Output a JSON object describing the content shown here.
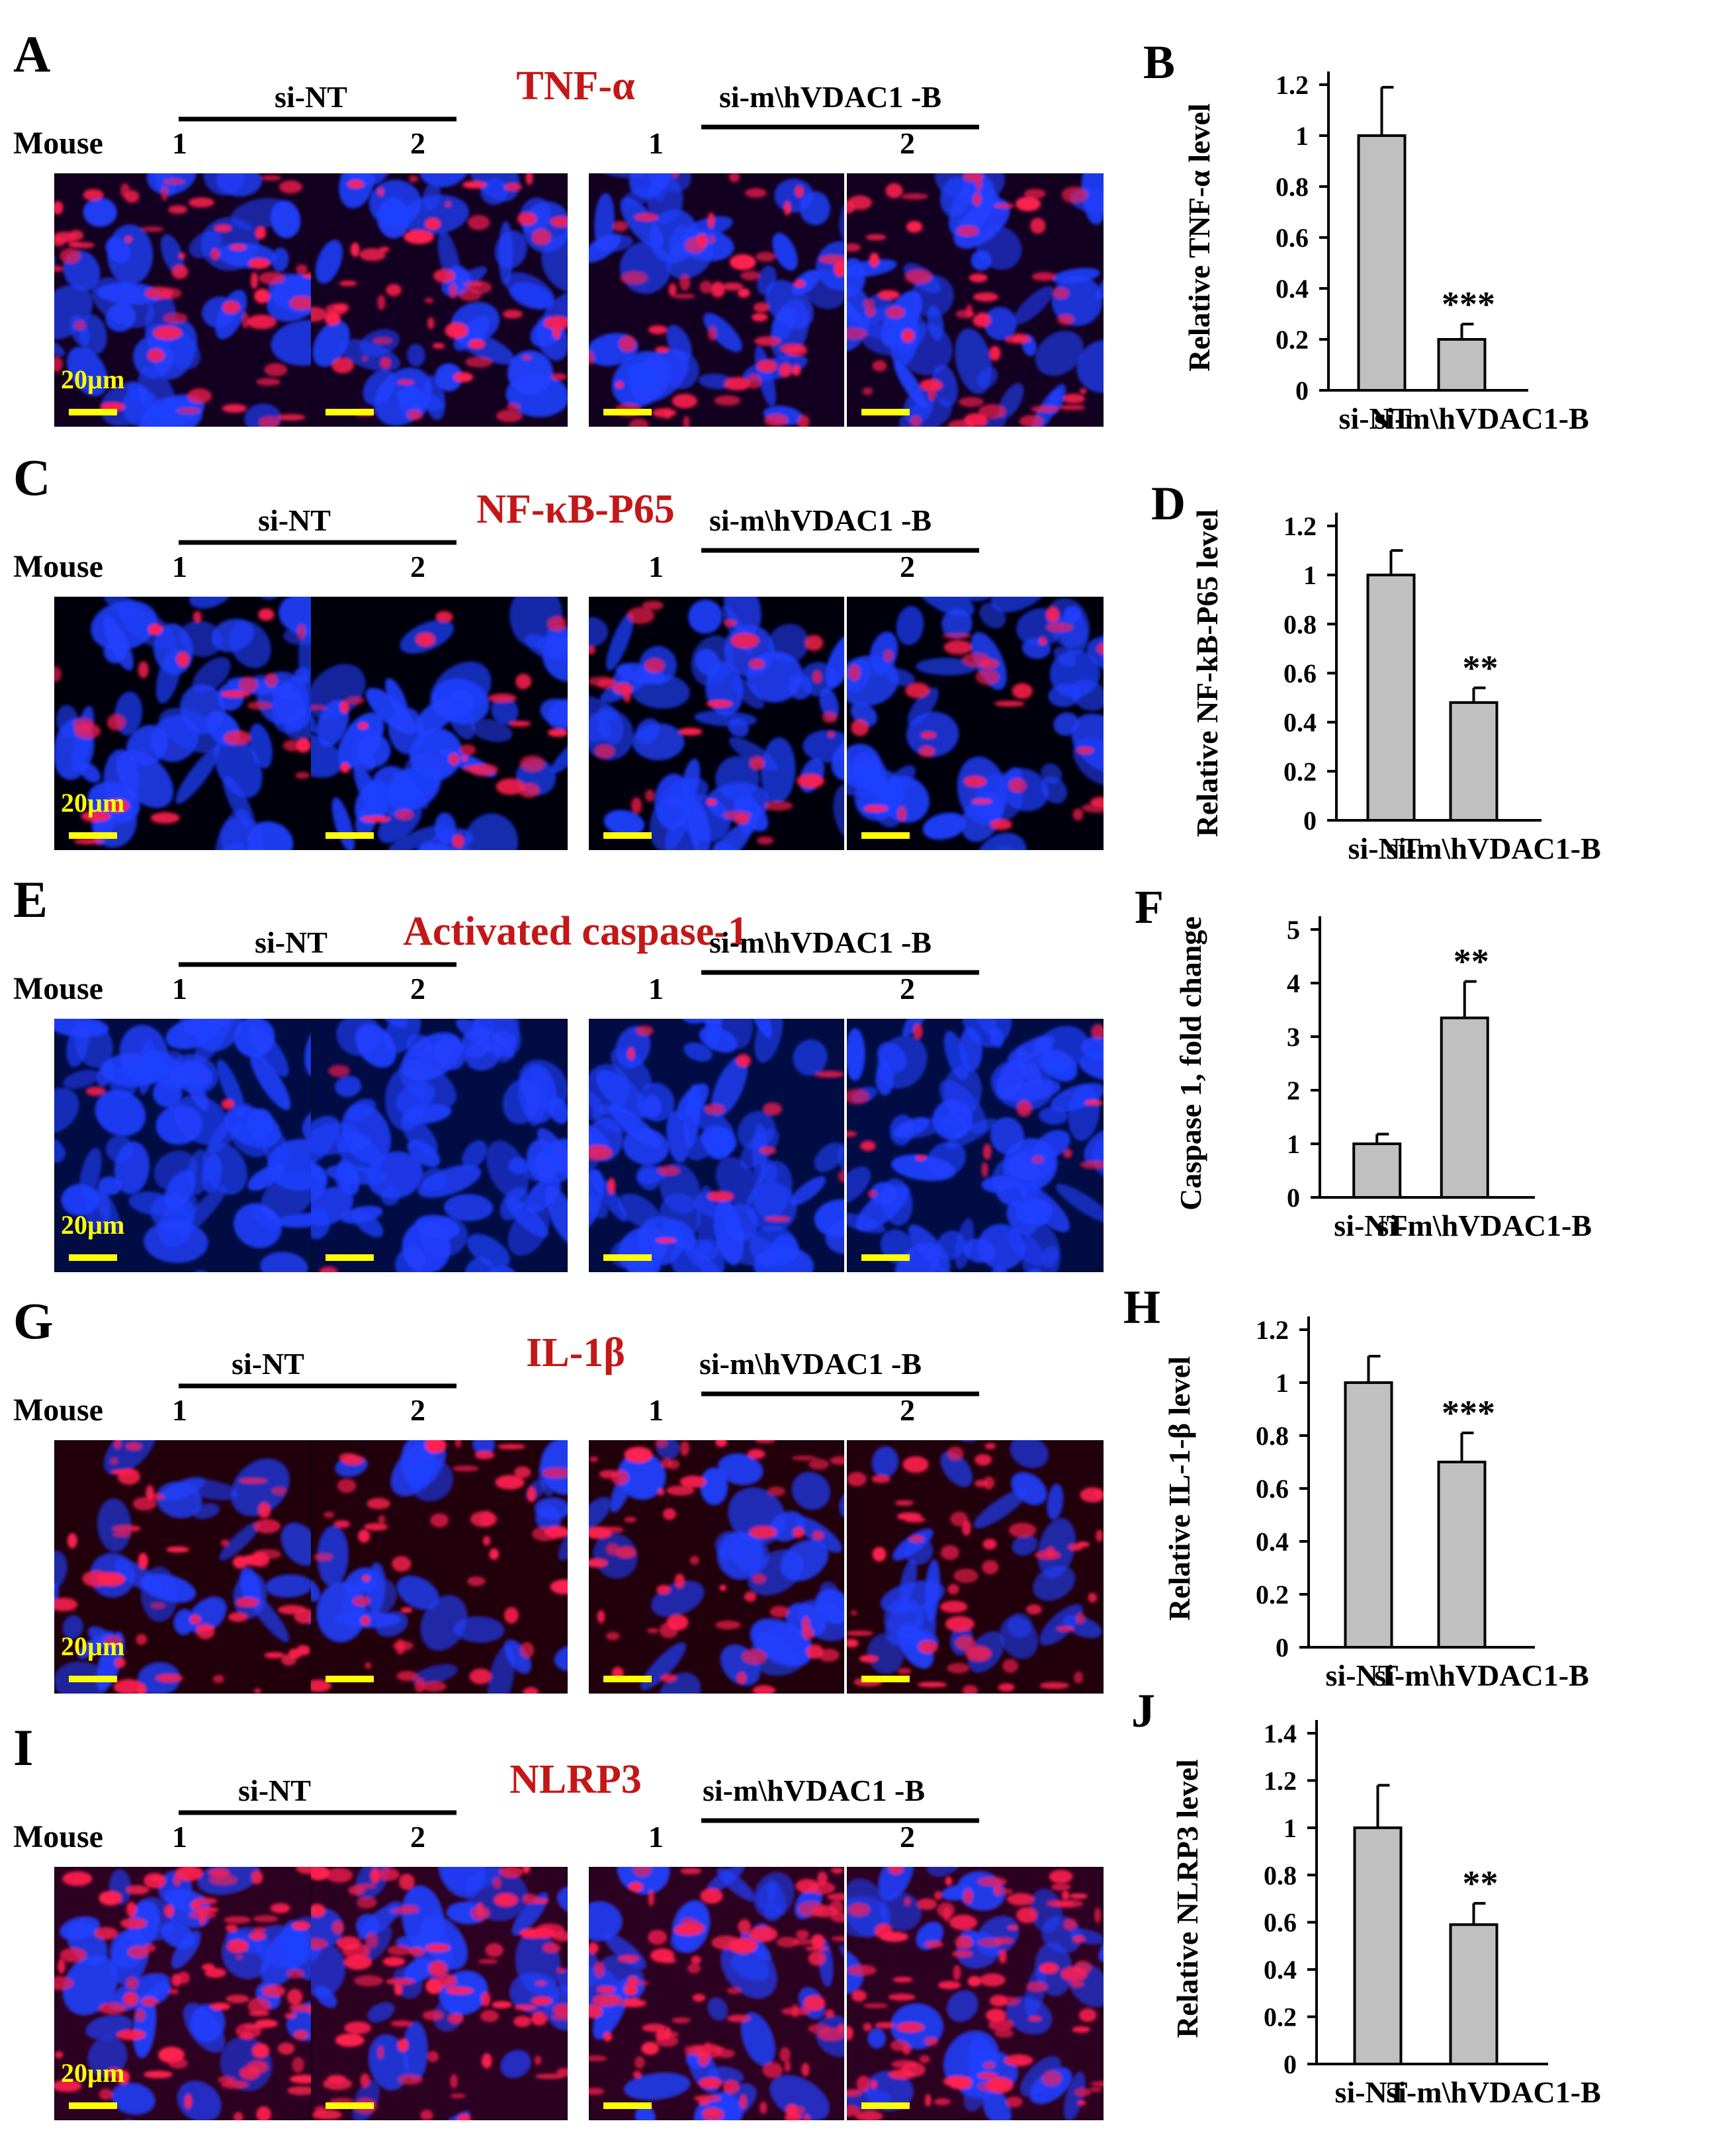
{
  "colors": {
    "red_title": "#c41717",
    "micro_blue": "#2040ff",
    "micro_red": "#ff2050",
    "scale_bar": "#ffff00",
    "bar_fill": "#c0c0c0"
  },
  "common": {
    "mouse_label": "Mouse",
    "group_si_nt": "si-NT",
    "group_si_vdac": "si-m\\hVDAC1 -B",
    "mouse_1": "1",
    "mouse_2": "2",
    "scale_label": "20µm"
  },
  "panels": [
    {
      "letter": "A",
      "title": "TNF-α",
      "images": [
        "si-NT mouse 1",
        "si-NT mouse 2",
        "si-m\\hVDAC1 -B mouse 1",
        "si-m\\hVDAC1 -B mouse 2"
      ]
    },
    {
      "letter": "C",
      "title": "NF-κB-P65"
    },
    {
      "letter": "E",
      "title": "Activated caspase-1"
    },
    {
      "letter": "G",
      "title": "IL-1β"
    },
    {
      "letter": "I",
      "title": "NLRP3"
    }
  ],
  "chart_data": [
    {
      "letter": "B",
      "type": "bar",
      "categories": [
        "si-NT",
        "si-m\\hVDAC1-B"
      ],
      "values": [
        1.0,
        0.2
      ],
      "errors": [
        0.19,
        0.06
      ],
      "significance": [
        "",
        "***"
      ],
      "ylabel": "Relative TNF-α level",
      "ylim": [
        0,
        1.2
      ],
      "yticks": [
        "0",
        "0.2",
        "0.4",
        "0.6",
        "0.8",
        "1",
        "1.2"
      ]
    },
    {
      "letter": "D",
      "type": "bar",
      "categories": [
        "si-NT",
        "si-m\\hVDAC1-B"
      ],
      "values": [
        1.0,
        0.48
      ],
      "errors": [
        0.1,
        0.06
      ],
      "significance": [
        "",
        "**"
      ],
      "ylabel": "Relative NF-kB-P65 level",
      "ylim": [
        0,
        1.2
      ],
      "yticks": [
        "0",
        "0.2",
        "0.4",
        "0.6",
        "0.8",
        "1",
        "1.2"
      ]
    },
    {
      "letter": "F",
      "type": "bar",
      "categories": [
        "si-NT",
        "si-m\\hVDAC1-B"
      ],
      "values": [
        1.0,
        3.35
      ],
      "errors": [
        0.18,
        0.68
      ],
      "significance": [
        "",
        "**"
      ],
      "ylabel": "Caspase 1, fold change",
      "ylim": [
        0,
        5
      ],
      "yticks": [
        "0",
        "1",
        "2",
        "3",
        "4",
        "5"
      ]
    },
    {
      "letter": "H",
      "type": "bar",
      "categories": [
        "si-NT",
        "si-m\\hVDAC1-B"
      ],
      "values": [
        1.0,
        0.7
      ],
      "errors": [
        0.1,
        0.11
      ],
      "significance": [
        "",
        "***"
      ],
      "ylabel": "Relative IL-1-β level",
      "ylim": [
        0,
        1.2
      ],
      "yticks": [
        "0",
        "0.2",
        "0.4",
        "0.6",
        "0.8",
        "1",
        "1.2"
      ]
    },
    {
      "letter": "J",
      "type": "bar",
      "categories": [
        "si-NT",
        "si-m\\hVDAC1-B"
      ],
      "values": [
        1.0,
        0.59
      ],
      "errors": [
        0.18,
        0.09
      ],
      "significance": [
        "",
        "**"
      ],
      "ylabel": "Relative NLRP3 level",
      "ylim": [
        0,
        1.4
      ],
      "yticks": [
        "0",
        "0.2",
        "0.4",
        "0.6",
        "0.8",
        "1",
        "1.2",
        "1.4"
      ]
    }
  ]
}
